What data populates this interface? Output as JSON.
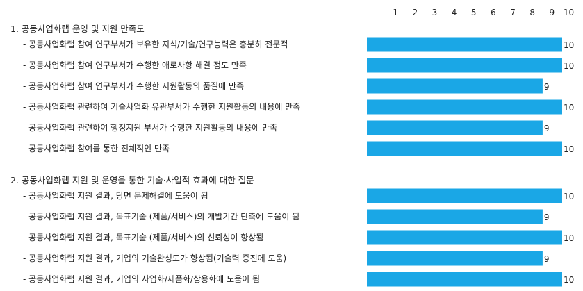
{
  "chart_data": {
    "type": "bar",
    "orientation": "horizontal",
    "xlim": [
      0,
      10
    ],
    "ticks": [
      1,
      2,
      3,
      4,
      5,
      6,
      7,
      8,
      9,
      10
    ],
    "bar_color": "#1aa7e6",
    "sections": [
      {
        "title": "1. 공동사업화랩 운영 및 지원 만족도",
        "items": [
          {
            "label": "- 공동사업화랩 참여 연구부서가 보유한 지식/기술/연구능력은 충분히 전문적",
            "value": 10
          },
          {
            "label": "- 공동사업화랩 참여 연구부서가 수행한 애로사항 해결 정도 만족",
            "value": 10
          },
          {
            "label": "- 공동사업화랩 참여 연구부서가 수행한 지원활동의 품질에 만족",
            "value": 9
          },
          {
            "label": "- 공동사업화랩 관련하여 기술사업화 유관부서가 수행한 지원활동의 내용에 만족",
            "value": 10
          },
          {
            "label": "- 공동사업화랩 관련하여 행정지원 부서가 수행한 지원활동의 내용에 만족",
            "value": 9
          },
          {
            "label": "- 공동사업화랩 참여를 통한 전체적인 만족",
            "value": 10
          }
        ]
      },
      {
        "title": "2. 공동사업화랩 지원 및 운영을 통한 기술·사업적 효과에 대한 질문",
        "items": [
          {
            "label": "- 공동사업화랩 지원 결과, 당면 문제해결에 도움이 됨",
            "value": 10
          },
          {
            "label": "- 공동사업화랩 지원 결과, 목표기술 (제품/서비스)의 개발기간 단축에 도움이 됨",
            "value": 9
          },
          {
            "label": "- 공동사업화랩 지원 결과, 목표기술 (제품/서비스)의 신뢰성이 향상됨",
            "value": 10
          },
          {
            "label": "- 공동사업화랩 지원 결과, 기업의 기술완성도가 향상됨(기술력 증진에 도움)",
            "value": 9
          },
          {
            "label": "- 공동사업화랩 지원 결과, 기업의 사업화/제품화/상용화에 도움이 됨",
            "value": 10
          }
        ]
      }
    ]
  }
}
